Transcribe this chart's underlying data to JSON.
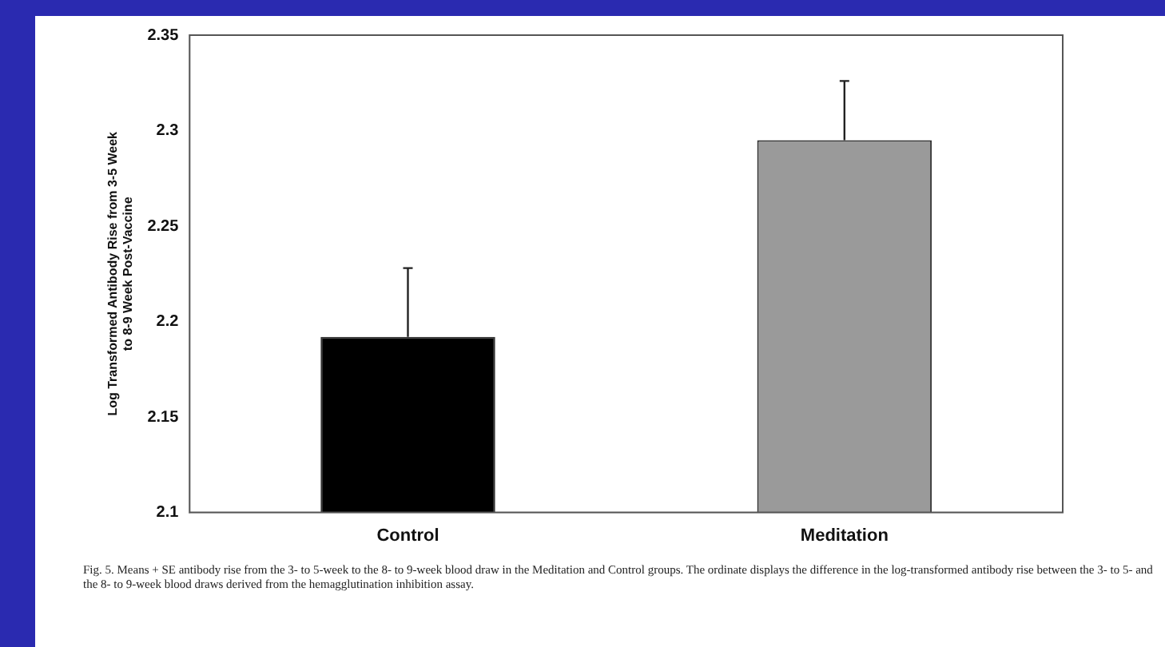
{
  "chart_data": {
    "type": "bar",
    "ylabel": "Log Transformed Antibody Rise from 3-5 Week to 8-9 Week Post-Vaccine",
    "categories": [
      "Control",
      "Meditation"
    ],
    "values": [
      2.192,
      2.295
    ],
    "colors": [
      "#000000",
      "#9a9a9a"
    ],
    "errors": [
      [
        2.192,
        2.228
      ],
      [
        2.295,
        2.326
      ]
    ],
    "ylim": [
      2.1,
      2.35
    ],
    "yticks": [
      2.1,
      2.15,
      2.2,
      2.25,
      2.3,
      2.35
    ],
    "grid": false,
    "legend": false,
    "annotations": [
      "Fig. 5.   Means + SE antibody rise from the 3- to 5-week to the 8- to 9-week blood draw in the Meditation and Control groups. The ordinate displays the difference in the log-transformed antibody rise between the 3- to 5- and the 8- to 9-week blood draws derived from the hemagglutination inhibition assay."
    ]
  }
}
